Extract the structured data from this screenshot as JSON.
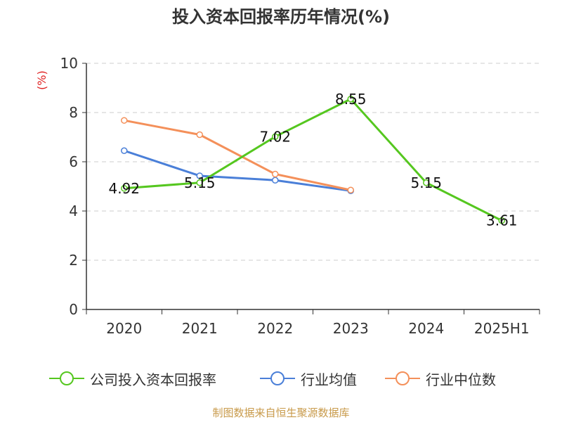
{
  "title": "投入资本回报率历年情况(%)",
  "footer": "制图数据来自恒生聚源数据库",
  "colors": {
    "company": "#55c71f",
    "industry_avg": "#4a7fd8",
    "industry_median": "#f4905a",
    "axis": "#333333",
    "grid": "#cccccc"
  },
  "chart_data": {
    "type": "line",
    "title": "投入资本回报率历年情况(%)",
    "ylabel": "(%)",
    "xlabel": "",
    "categories": [
      "2020",
      "2021",
      "2022",
      "2023",
      "2024",
      "2025H1"
    ],
    "ylim": [
      0,
      10
    ],
    "yticks": [
      0,
      2,
      4,
      6,
      8,
      10
    ],
    "grid": true,
    "legend_position": "bottom",
    "series": [
      {
        "name": "公司投入资本回报率",
        "values": [
          4.92,
          5.15,
          7.02,
          8.55,
          5.15,
          3.61
        ],
        "labels": [
          "4.92",
          "5.15",
          "7.02",
          "8.55",
          "5.15",
          "3.61"
        ],
        "color": "#55c71f"
      },
      {
        "name": "行业均值",
        "values": [
          6.45,
          5.43,
          5.25,
          4.82,
          null,
          null
        ],
        "color": "#4a7fd8"
      },
      {
        "name": "行业中位数",
        "values": [
          7.68,
          7.1,
          5.5,
          4.85,
          null,
          null
        ],
        "color": "#f4905a"
      }
    ]
  }
}
